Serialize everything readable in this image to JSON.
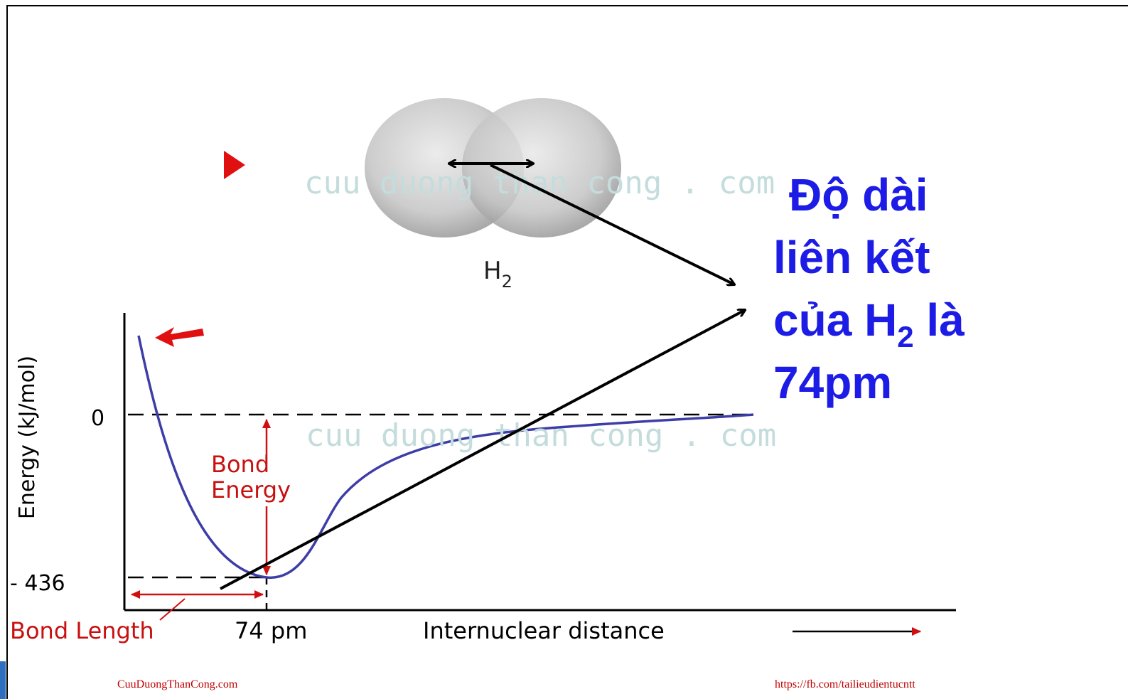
{
  "watermark": [
    "cuu duong than cong . com",
    "cuu duong than cong . com"
  ],
  "molecule_label": {
    "main": "H",
    "sub": "2"
  },
  "diagram": {
    "y_axis_label": "Energy (kJ/mol)",
    "zero_label": "0",
    "min_label": "- 436",
    "bond_energy": [
      "Bond",
      "Energy"
    ],
    "bond_length": "Bond Length",
    "length_value": "74 pm",
    "x_axis_label": "Internuclear distance"
  },
  "callout": {
    "line1": "Độ dài",
    "line2": "liên kết",
    "line3_main": "của H",
    "line3_sub": "2",
    "line3_end": " là",
    "line4": "74pm"
  },
  "footer": {
    "left": "CuuDuongThanCong.com",
    "right": "https://fb.com/tailieudientucntt"
  }
}
